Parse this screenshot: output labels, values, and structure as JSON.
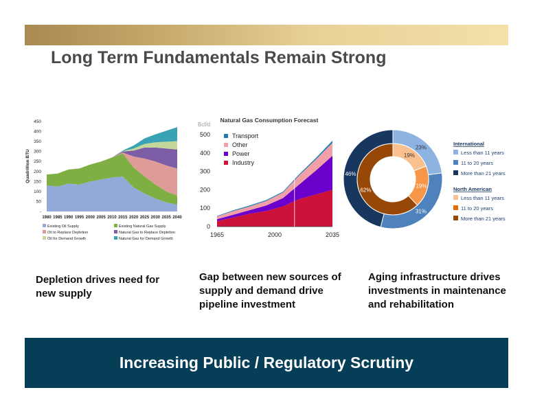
{
  "slide": {
    "title": "Long Term Fundamentals Remain Strong",
    "banner": "Increasing Public / Regulatory Scrutiny",
    "colors": {
      "banner_bg": "#063d57",
      "topbar_gold": "#d4b677",
      "title_text": "#4a4a4a"
    }
  },
  "captions": [
    "Depletion drives need for new supply",
    "Gap between new sources of supply and demand drive pipeline investment",
    "Aging infrastructure drives investments in maintenance and rehabilitation"
  ],
  "chart_data": [
    {
      "type": "area",
      "ylabel": "Quadrillion BTU",
      "x": [
        1980,
        1985,
        1990,
        1995,
        2000,
        2005,
        2010,
        2015,
        2020,
        2025,
        2030,
        2035,
        2040
      ],
      "x_ticks": [
        "1980",
        "1985",
        "1990",
        "1995",
        "2000",
        "2005",
        "2010",
        "2015",
        "2020",
        "2025",
        "2030",
        "2035",
        "2040"
      ],
      "y_ticks": [
        "-",
        "50",
        "100",
        "150",
        "200",
        "250",
        "300",
        "350",
        "400",
        "450"
      ],
      "ylim": [
        0,
        450
      ],
      "series": [
        {
          "name": "Existing Oil Supply",
          "color": "#93aad9",
          "values": [
            130,
            125,
            140,
            135,
            150,
            160,
            170,
            175,
            120,
            90,
            65,
            45,
            35
          ]
        },
        {
          "name": "Existing Natural Gas Supply",
          "color": "#7fae43",
          "values": [
            55,
            65,
            70,
            80,
            85,
            90,
            100,
            115,
            100,
            85,
            70,
            55,
            45
          ]
        },
        {
          "name": "Oil to Replace Depletion",
          "color": "#de9b98",
          "values": [
            0,
            0,
            0,
            0,
            0,
            0,
            0,
            5,
            55,
            90,
            115,
            130,
            135
          ]
        },
        {
          "name": "Natural Gas to Replace Depletion",
          "color": "#7c5ca5",
          "values": [
            0,
            0,
            0,
            0,
            0,
            0,
            0,
            5,
            30,
            55,
            70,
            85,
            95
          ]
        },
        {
          "name": "Oil for Demand Growth",
          "color": "#c4d79b",
          "values": [
            0,
            0,
            0,
            0,
            0,
            0,
            0,
            2,
            10,
            18,
            26,
            34,
            42
          ]
        },
        {
          "name": "Natural Gas for Demand Growth",
          "color": "#3aa3b3",
          "values": [
            0,
            0,
            0,
            0,
            0,
            0,
            0,
            3,
            15,
            28,
            40,
            55,
            70
          ]
        }
      ]
    },
    {
      "type": "area",
      "title": "Natural Gas Consumption Forecast",
      "ylabel": "Bcf/d",
      "x": [
        1965,
        1975,
        1985,
        1995,
        2005,
        2015,
        2025,
        2035
      ],
      "x_ticks": [
        "1965",
        "2000",
        "2035"
      ],
      "x_tick_values": [
        1965,
        2000,
        2035
      ],
      "y_ticks": [
        "0",
        "100",
        "200",
        "300",
        "400",
        "500"
      ],
      "ylim": [
        0,
        500
      ],
      "forecast_start": 2012,
      "series": [
        {
          "name": "Industry",
          "color": "#cc1238",
          "values": [
            30,
            50,
            70,
            85,
            110,
            150,
            175,
            200
          ]
        },
        {
          "name": "Power",
          "color": "#6b00cc",
          "values": [
            10,
            15,
            20,
            30,
            45,
            80,
            130,
            185
          ]
        },
        {
          "name": "Other",
          "color": "#f0a0a6",
          "values": [
            15,
            20,
            20,
            25,
            30,
            50,
            60,
            70
          ]
        },
        {
          "name": "Transport",
          "color": "#1f7db3",
          "values": [
            3,
            4,
            5,
            5,
            5,
            6,
            8,
            12
          ]
        }
      ]
    },
    {
      "type": "pie",
      "rings": [
        {
          "name": "International",
          "ring": "inner",
          "slices": [
            {
              "label": "Less than 11 years",
              "value": 19,
              "text": "19%",
              "color": "#fac08f"
            },
            {
              "label": "11 to 20 years",
              "value": 19,
              "text": "19%",
              "color": "#f79646"
            },
            {
              "label": "More than 21 years",
              "value": 62,
              "text": "62%",
              "color": "#974806"
            }
          ]
        },
        {
          "name": "North American",
          "ring": "outer",
          "slices": [
            {
              "label": "Less than 11 years",
              "value": 23,
              "text": "23%",
              "color": "#8db3e2"
            },
            {
              "label": "11 to 20 years",
              "value": 31,
              "text": "31%",
              "color": "#4f81bd"
            },
            {
              "label": "More than 21 years",
              "value": 46,
              "text": "46%",
              "color": "#17375e"
            }
          ]
        }
      ],
      "legend_groups": [
        {
          "title": "International",
          "items": [
            {
              "label": "Less than 11 years",
              "color": "#8db3e2"
            },
            {
              "label": "11 to 20 years",
              "color": "#4f81bd"
            },
            {
              "label": "More than 21 years",
              "color": "#17375e"
            }
          ]
        },
        {
          "title": "North American",
          "items": [
            {
              "label": "Less than 11 years",
              "color": "#fac08f"
            },
            {
              "label": "11 to 20 years",
              "color": "#e36c09"
            },
            {
              "label": "More than 21 years",
              "color": "#974806"
            }
          ]
        }
      ]
    }
  ]
}
